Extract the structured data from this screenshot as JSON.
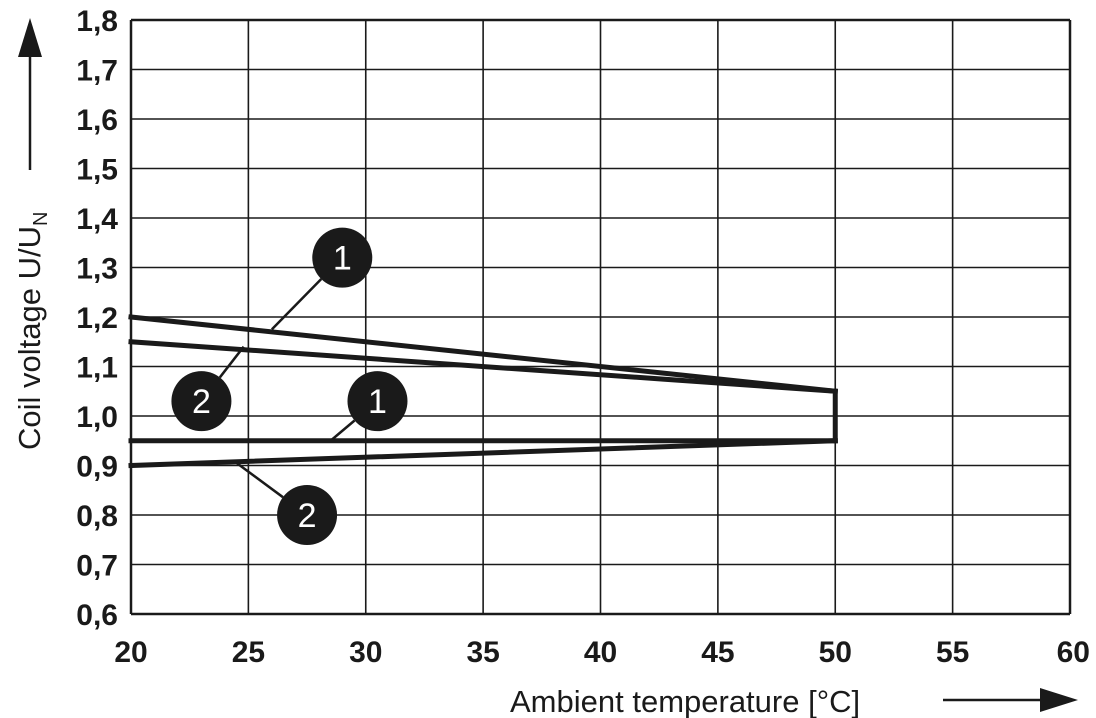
{
  "chart_data": {
    "type": "line",
    "xlabel": "Ambient temperature [°C]",
    "ylabel_main": "Coil voltage U/U",
    "ylabel_sub": "N",
    "xlim": [
      20,
      60
    ],
    "ylim": [
      0.6,
      1.8
    ],
    "grid": true,
    "x_ticks": [
      {
        "value": 20,
        "label": "20"
      },
      {
        "value": 25,
        "label": "25"
      },
      {
        "value": 30,
        "label": "30"
      },
      {
        "value": 35,
        "label": "35"
      },
      {
        "value": 40,
        "label": "40"
      },
      {
        "value": 45,
        "label": "45"
      },
      {
        "value": 50,
        "label": "50"
      },
      {
        "value": 55,
        "label": "55"
      },
      {
        "value": 60,
        "label": "60"
      }
    ],
    "y_ticks": [
      {
        "value": 0.6,
        "label": "0,6"
      },
      {
        "value": 0.7,
        "label": "0,7"
      },
      {
        "value": 0.8,
        "label": "0,8"
      },
      {
        "value": 0.9,
        "label": "0,9"
      },
      {
        "value": 1.0,
        "label": "1,0"
      },
      {
        "value": 1.1,
        "label": "1,1"
      },
      {
        "value": 1.2,
        "label": "1,2"
      },
      {
        "value": 1.3,
        "label": "1,3"
      },
      {
        "value": 1.4,
        "label": "1,4"
      },
      {
        "value": 1.5,
        "label": "1,5"
      },
      {
        "value": 1.6,
        "label": "1,6"
      },
      {
        "value": 1.7,
        "label": "1,7"
      },
      {
        "value": 1.8,
        "label": "1,8"
      }
    ],
    "series": [
      {
        "id": "1-upper",
        "label": "1",
        "x": [
          20,
          50
        ],
        "y": [
          1.2,
          1.05
        ]
      },
      {
        "id": "2-upper",
        "label": "2",
        "x": [
          20,
          50
        ],
        "y": [
          1.15,
          1.05
        ]
      },
      {
        "id": "1-lower",
        "label": "1",
        "x": [
          20,
          50
        ],
        "y": [
          0.95,
          0.95
        ]
      },
      {
        "id": "2-lower",
        "label": "2",
        "x": [
          20,
          50
        ],
        "y": [
          0.9,
          0.95
        ]
      },
      {
        "id": "limit",
        "label": "",
        "x": [
          50,
          50
        ],
        "y": [
          0.95,
          1.05
        ]
      }
    ],
    "annotations": [
      {
        "label": "1",
        "series": "1-upper",
        "marker_x": 29.0,
        "marker_y": 1.32,
        "leader_to_x": 26.0,
        "leader_to_y": 1.175
      },
      {
        "label": "2",
        "series": "2-upper",
        "marker_x": 23.0,
        "marker_y": 1.03,
        "leader_to_x": 24.8,
        "leader_to_y": 1.14
      },
      {
        "label": "1",
        "series": "1-lower",
        "marker_x": 30.5,
        "marker_y": 1.03,
        "leader_to_x": 28.5,
        "leader_to_y": 0.95
      },
      {
        "label": "2",
        "series": "2-lower",
        "marker_x": 27.5,
        "marker_y": 0.8,
        "leader_to_x": 24.5,
        "leader_to_y": 0.905
      }
    ]
  }
}
